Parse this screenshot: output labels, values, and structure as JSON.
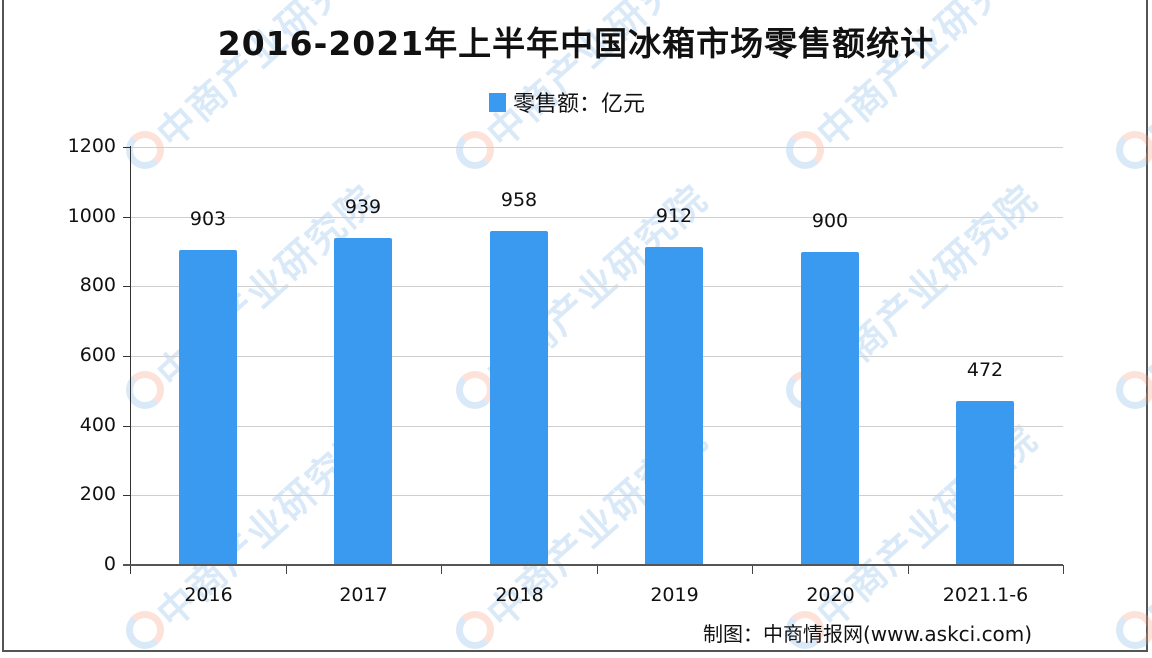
{
  "title": "2016-2021年上半年中国冰箱市场零售额统计",
  "legend": {
    "label": "零售额：亿元",
    "color": "#3a9af0"
  },
  "source": "制图：中商情报网(www.askci.com)",
  "watermark": "中商产业研究院",
  "chart_data": {
    "type": "bar",
    "title": "2016-2021年上半年中国冰箱市场零售额统计",
    "xlabel": "",
    "ylabel": "",
    "categories": [
      "2016",
      "2017",
      "2018",
      "2019",
      "2020",
      "2021.1-6"
    ],
    "series": [
      {
        "name": "零售额：亿元",
        "values": [
          903,
          939,
          958,
          912,
          900,
          472
        ],
        "color": "#3a9af0"
      }
    ],
    "data_labels": [
      "903",
      "939",
      "958",
      "912",
      "900",
      "472"
    ],
    "ylim": [
      0,
      1200
    ],
    "yticks": [
      "0",
      "200",
      "400",
      "600",
      "800",
      "1000",
      "1200"
    ],
    "grid": true,
    "legend_position": "top"
  }
}
